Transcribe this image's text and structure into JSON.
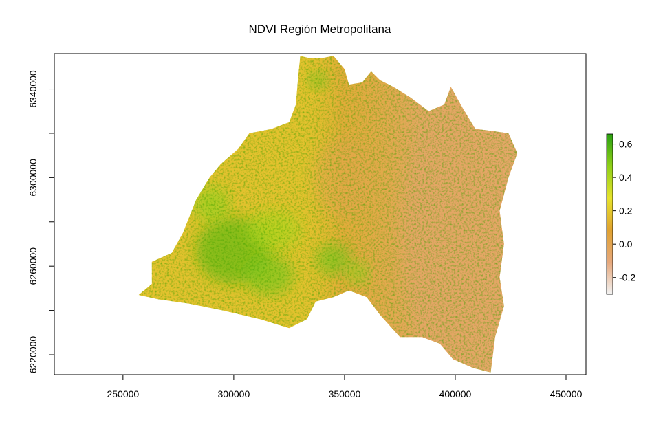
{
  "title": "NDVI Región Metropolitana",
  "chart_data": {
    "type": "heatmap",
    "title": "NDVI Región Metropolitana",
    "xlabel": "",
    "ylabel": "",
    "x_ticks": [
      250000,
      300000,
      350000,
      400000,
      450000
    ],
    "y_ticks": [
      6220000,
      6260000,
      6300000,
      6340000
    ],
    "x_tick_labels": [
      "250000",
      "300000",
      "350000",
      "400000",
      "450000"
    ],
    "y_tick_labels": [
      "6220000",
      "6260000",
      "6300000",
      "6340000"
    ],
    "xlim": [
      219000,
      459000
    ],
    "ylim": [
      6211000,
      6356000
    ],
    "grid": false,
    "legend": {
      "placement": "right",
      "range": [
        -0.3,
        0.66
      ],
      "ticks": [
        0.6,
        0.4,
        0.2,
        0.0,
        -0.2
      ],
      "tick_labels": [
        "0.6",
        "0.4",
        "0.2",
        "0.0",
        "-0.2"
      ],
      "colors": [
        "#f2f2f2",
        "#e6a87c",
        "#e0a230",
        "#e6e22b",
        "#8fcf18",
        "#2aa012"
      ]
    },
    "region_outline": [
      [
        330000,
        6355000
      ],
      [
        334000,
        6354000
      ],
      [
        340000,
        6354000
      ],
      [
        345000,
        6355000
      ],
      [
        350000,
        6349000
      ],
      [
        352000,
        6342000
      ],
      [
        358000,
        6343000
      ],
      [
        362000,
        6348000
      ],
      [
        366000,
        6344000
      ],
      [
        372000,
        6341000
      ],
      [
        380000,
        6336000
      ],
      [
        388000,
        6330000
      ],
      [
        395000,
        6333000
      ],
      [
        398000,
        6341000
      ],
      [
        403000,
        6332000
      ],
      [
        409000,
        6322000
      ],
      [
        417000,
        6321000
      ],
      [
        424000,
        6320000
      ],
      [
        428000,
        6311000
      ],
      [
        424000,
        6300000
      ],
      [
        420000,
        6285000
      ],
      [
        422000,
        6270000
      ],
      [
        420000,
        6255000
      ],
      [
        422000,
        6242000
      ],
      [
        418000,
        6228000
      ],
      [
        416000,
        6212000
      ],
      [
        408000,
        6214000
      ],
      [
        399000,
        6218000
      ],
      [
        393000,
        6225000
      ],
      [
        385000,
        6228000
      ],
      [
        375000,
        6228000
      ],
      [
        366000,
        6238000
      ],
      [
        360000,
        6246000
      ],
      [
        352000,
        6249000
      ],
      [
        345000,
        6246000
      ],
      [
        337000,
        6244000
      ],
      [
        333000,
        6236000
      ],
      [
        325000,
        6232000
      ],
      [
        312000,
        6236000
      ],
      [
        295000,
        6240000
      ],
      [
        280000,
        6243000
      ],
      [
        266000,
        6245000
      ],
      [
        257000,
        6247000
      ],
      [
        263000,
        6252000
      ],
      [
        263000,
        6262000
      ],
      [
        272000,
        6266000
      ],
      [
        277000,
        6275000
      ],
      [
        283000,
        6290000
      ],
      [
        289000,
        6300000
      ],
      [
        294000,
        6306000
      ],
      [
        302000,
        6313000
      ],
      [
        307000,
        6320000
      ],
      [
        317000,
        6322000
      ],
      [
        325000,
        6325000
      ],
      [
        328000,
        6333000
      ],
      [
        329000,
        6345000
      ]
    ],
    "vegetation_zones": [
      {
        "center": [
          300000,
          6267000
        ],
        "radius": [
          17000,
          15000
        ],
        "ndvi": 0.55
      },
      {
        "center": [
          316000,
          6256000
        ],
        "radius": [
          11000,
          9000
        ],
        "ndvi": 0.5
      },
      {
        "center": [
          290000,
          6288000
        ],
        "radius": [
          8000,
          8000
        ],
        "ndvi": 0.45
      },
      {
        "center": [
          345000,
          6263000
        ],
        "radius": [
          8000,
          7000
        ],
        "ndvi": 0.5
      },
      {
        "center": [
          356000,
          6257000
        ],
        "radius": [
          5000,
          5000
        ],
        "ndvi": 0.45
      },
      {
        "center": [
          338000,
          6344000
        ],
        "radius": [
          4000,
          4000
        ],
        "ndvi": 0.5
      },
      {
        "center": [
          318000,
          6276000
        ],
        "radius": [
          12000,
          9000
        ],
        "ndvi": 0.4
      }
    ],
    "urban_zones": [
      {
        "center": [
          350000,
          6300000
        ],
        "radius": [
          14000,
          18000
        ],
        "ndvi": 0.0
      }
    ],
    "mountain_zones": [
      {
        "center": [
          400000,
          6275000
        ],
        "radius": [
          24000,
          55000
        ],
        "ndvi": -0.05
      }
    ]
  }
}
